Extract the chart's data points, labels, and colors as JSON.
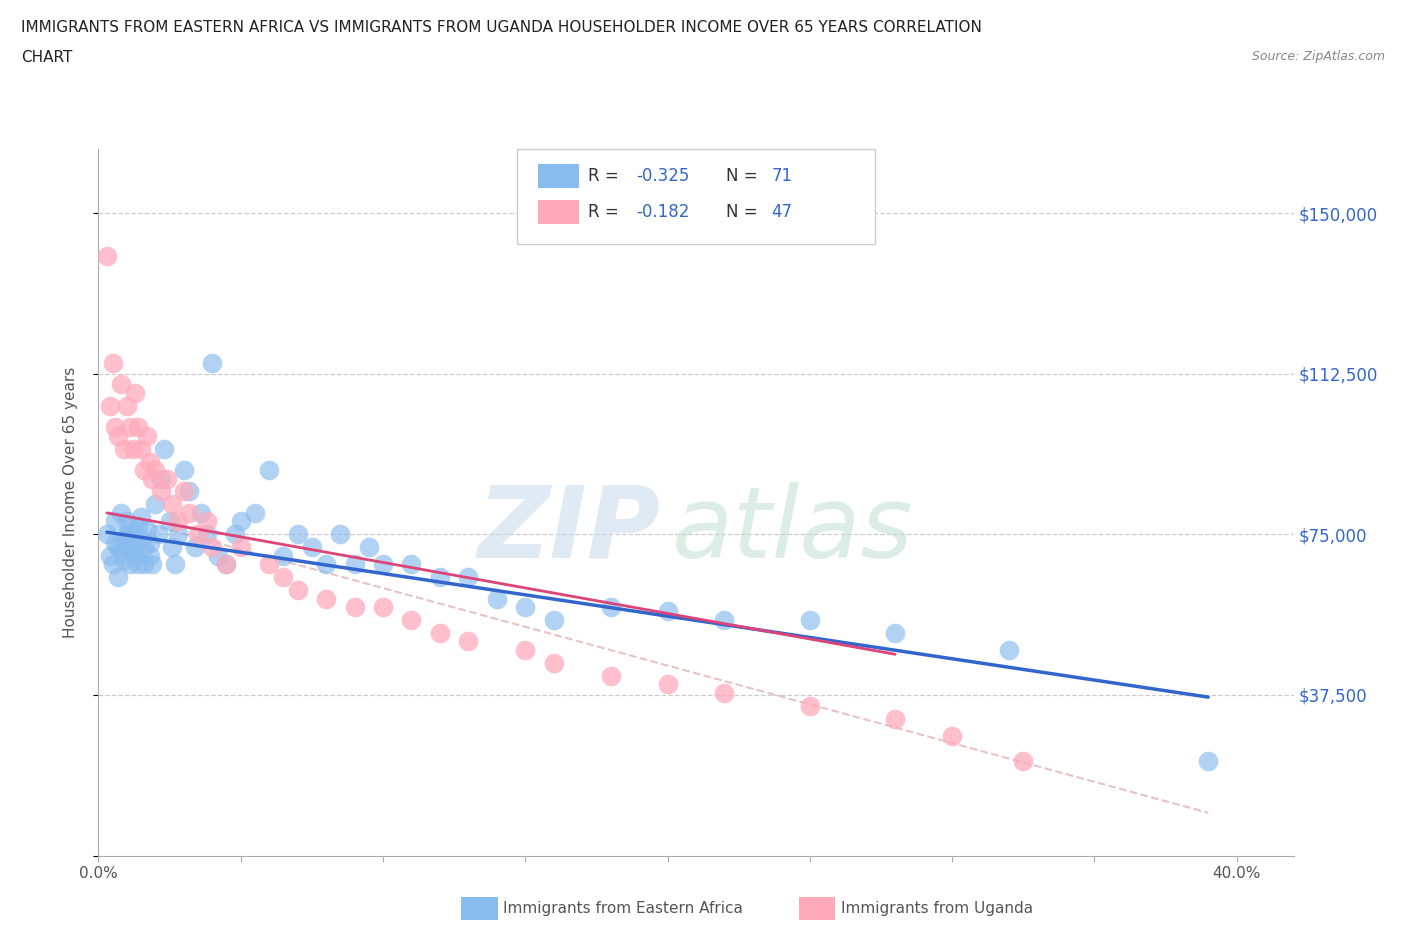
{
  "title_line1": "IMMIGRANTS FROM EASTERN AFRICA VS IMMIGRANTS FROM UGANDA HOUSEHOLDER INCOME OVER 65 YEARS CORRELATION",
  "title_line2": "CHART",
  "source": "Source: ZipAtlas.com",
  "ylabel": "Householder Income Over 65 years",
  "xlim": [
    0.0,
    0.42
  ],
  "ylim": [
    0,
    165000
  ],
  "yticks": [
    0,
    37500,
    75000,
    112500,
    150000
  ],
  "ytick_labels": [
    "",
    "$37,500",
    "$75,000",
    "$112,500",
    "$150,000"
  ],
  "color_blue": "#88bbee",
  "color_blue_line": "#3366cc",
  "color_pink": "#ffaabb",
  "color_pink_line": "#dd4477",
  "color_dash": "#ddaaaa",
  "color_text_blue": "#3366cc",
  "eastern_africa_x": [
    0.003,
    0.004,
    0.005,
    0.006,
    0.006,
    0.007,
    0.007,
    0.008,
    0.008,
    0.009,
    0.009,
    0.01,
    0.01,
    0.01,
    0.011,
    0.011,
    0.012,
    0.012,
    0.013,
    0.013,
    0.014,
    0.014,
    0.015,
    0.015,
    0.016,
    0.016,
    0.017,
    0.018,
    0.018,
    0.019,
    0.02,
    0.021,
    0.022,
    0.023,
    0.025,
    0.026,
    0.027,
    0.028,
    0.03,
    0.032,
    0.034,
    0.036,
    0.038,
    0.04,
    0.042,
    0.045,
    0.048,
    0.05,
    0.055,
    0.06,
    0.065,
    0.07,
    0.075,
    0.08,
    0.085,
    0.09,
    0.095,
    0.1,
    0.11,
    0.12,
    0.13,
    0.14,
    0.15,
    0.16,
    0.18,
    0.2,
    0.22,
    0.25,
    0.28,
    0.32,
    0.39
  ],
  "eastern_africa_y": [
    75000,
    70000,
    68000,
    73000,
    78000,
    72000,
    65000,
    80000,
    71000,
    74000,
    69000,
    78000,
    72000,
    75000,
    68000,
    76000,
    73000,
    71000,
    75000,
    70000,
    77000,
    68000,
    74000,
    79000,
    72000,
    68000,
    76000,
    70000,
    73000,
    68000,
    82000,
    75000,
    88000,
    95000,
    78000,
    72000,
    68000,
    75000,
    90000,
    85000,
    72000,
    80000,
    75000,
    115000,
    70000,
    68000,
    75000,
    78000,
    80000,
    90000,
    70000,
    75000,
    72000,
    68000,
    75000,
    68000,
    72000,
    68000,
    68000,
    65000,
    65000,
    60000,
    58000,
    55000,
    58000,
    57000,
    55000,
    55000,
    52000,
    48000,
    22000
  ],
  "uganda_x": [
    0.003,
    0.004,
    0.005,
    0.006,
    0.007,
    0.008,
    0.009,
    0.01,
    0.011,
    0.012,
    0.013,
    0.014,
    0.015,
    0.016,
    0.017,
    0.018,
    0.019,
    0.02,
    0.022,
    0.024,
    0.026,
    0.028,
    0.03,
    0.032,
    0.035,
    0.038,
    0.04,
    0.045,
    0.05,
    0.06,
    0.065,
    0.07,
    0.08,
    0.09,
    0.1,
    0.11,
    0.12,
    0.13,
    0.15,
    0.16,
    0.18,
    0.2,
    0.22,
    0.25,
    0.28,
    0.3,
    0.325
  ],
  "uganda_y": [
    140000,
    105000,
    115000,
    100000,
    98000,
    110000,
    95000,
    105000,
    100000,
    95000,
    108000,
    100000,
    95000,
    90000,
    98000,
    92000,
    88000,
    90000,
    85000,
    88000,
    82000,
    78000,
    85000,
    80000,
    75000,
    78000,
    72000,
    68000,
    72000,
    68000,
    65000,
    62000,
    60000,
    58000,
    58000,
    55000,
    52000,
    50000,
    48000,
    45000,
    42000,
    40000,
    38000,
    35000,
    32000,
    28000,
    22000
  ],
  "blue_line_x": [
    0.003,
    0.39
  ],
  "blue_line_y": [
    75500,
    37000
  ],
  "pink_line_x": [
    0.003,
    0.28
  ],
  "pink_line_y": [
    80000,
    47000
  ],
  "dash_line_x": [
    0.003,
    0.39
  ],
  "dash_line_y": [
    80000,
    10000
  ]
}
